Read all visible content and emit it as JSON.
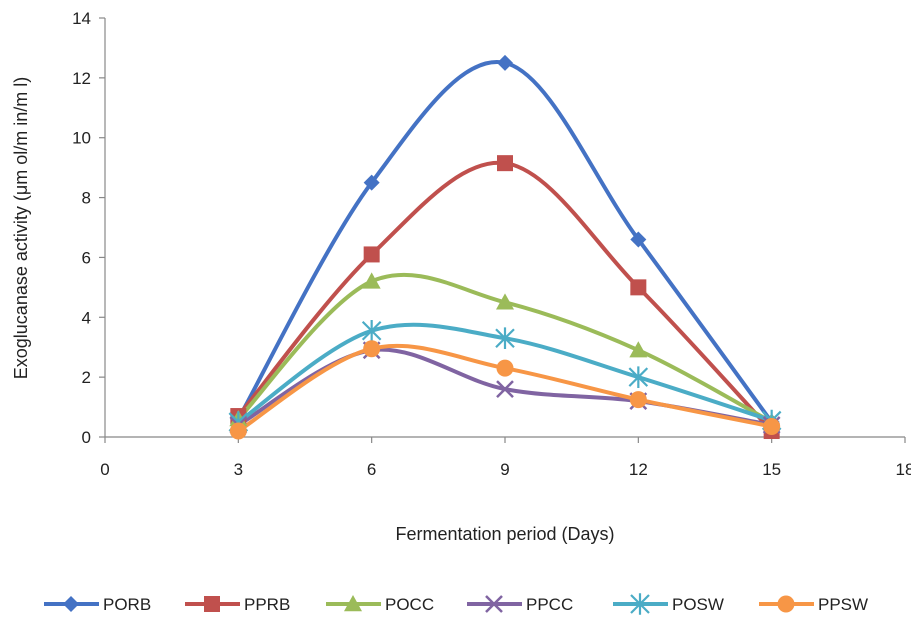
{
  "chart_data": {
    "type": "line",
    "xlabel": "Fermentation period (Days)",
    "ylabel": "Exoglucanase activity  (μm ol/m in/m l)",
    "xlim": [
      0,
      18
    ],
    "ylim": [
      0,
      14
    ],
    "x_ticks": [
      "0",
      "3",
      "6",
      "9",
      "12",
      "15",
      "18"
    ],
    "y_ticks": [
      "0",
      "2",
      "4",
      "6",
      "8",
      "10",
      "12",
      "14"
    ],
    "x": [
      3,
      6,
      9,
      12,
      15
    ],
    "smooth": true,
    "grid": false,
    "legend_position": "bottom",
    "series": [
      {
        "name": "PORB",
        "values": [
          0.6,
          8.5,
          12.5,
          6.6,
          0.5
        ],
        "color": "#4472C4",
        "marker": "diamond"
      },
      {
        "name": "PPRB",
        "values": [
          0.7,
          6.1,
          9.15,
          5.0,
          0.2
        ],
        "color": "#C0504D",
        "marker": "square"
      },
      {
        "name": "POCC",
        "values": [
          0.6,
          5.2,
          4.5,
          2.9,
          0.5
        ],
        "color": "#9BBB59",
        "marker": "triangle"
      },
      {
        "name": "PPCC",
        "values": [
          0.4,
          2.9,
          1.6,
          1.2,
          0.4
        ],
        "color": "#8064A2",
        "marker": "x"
      },
      {
        "name": "POSW",
        "values": [
          0.5,
          3.55,
          3.3,
          2.0,
          0.55
        ],
        "color": "#4BACC6",
        "marker": "star"
      },
      {
        "name": "PPSW",
        "values": [
          0.2,
          2.95,
          2.3,
          1.25,
          0.35
        ],
        "color": "#F79646",
        "marker": "circle"
      }
    ]
  }
}
